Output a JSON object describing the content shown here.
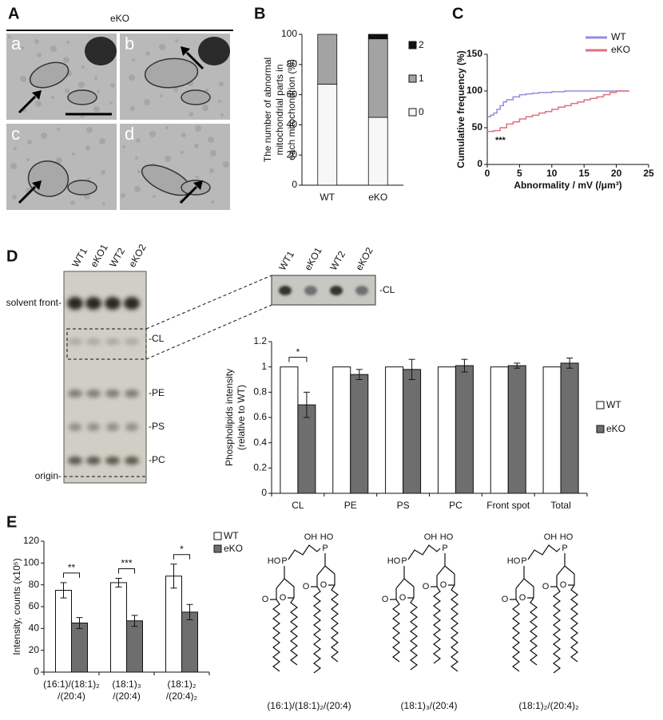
{
  "panels": [
    "A",
    "B",
    "C",
    "D",
    "E"
  ],
  "em": {
    "title": "eKO",
    "subpanels": [
      "a",
      "b",
      "c",
      "d"
    ]
  },
  "tlc": {
    "lanes": [
      "WT1",
      "eKO1",
      "WT2",
      "eKO2"
    ],
    "left_labels": [
      "solvent front-",
      "origin-"
    ],
    "right_labels": [
      "-CL",
      "-PE",
      "-PS",
      "-PC"
    ]
  },
  "structures": {
    "atoms": [
      "OH",
      "HO",
      "P",
      "O"
    ],
    "captions": [
      "(16:1)/(18:1)₂/(20:4)",
      "(18:1)₃/(20:4)",
      "(18:1)₂/(20:4)₂"
    ]
  },
  "chart_data": [
    {
      "type": "stacked_bar",
      "ylabel": [
        "The number of abnormal",
        "mitochondrial parts in",
        "each mitochondrion (%)"
      ],
      "categories": [
        "WT",
        "eKO"
      ],
      "ylim": [
        0,
        100
      ],
      "yticks": [
        0,
        20,
        40,
        60,
        80,
        100
      ],
      "series": [
        {
          "name": "0",
          "color": "#f7f7f7",
          "values": [
            67,
            45
          ]
        },
        {
          "name": "1",
          "color": "#a3a3a3",
          "values": [
            33,
            52
          ]
        },
        {
          "name": "2",
          "color": "#111111",
          "values": [
            0,
            3
          ]
        }
      ]
    },
    {
      "type": "line",
      "xlabel": "Abnormality / mV (/μm³)",
      "ylabel": "Cumulative frequency (%)",
      "xlim": [
        0,
        25
      ],
      "xticks": [
        0,
        5,
        10,
        15,
        20,
        25
      ],
      "ylim": [
        0,
        150
      ],
      "yticks": [
        0,
        50,
        100,
        150
      ],
      "annotations": [
        "***"
      ],
      "series": [
        {
          "name": "WT",
          "color": "#8f8fe0",
          "x": [
            0,
            0.5,
            1,
            1.5,
            2,
            2.5,
            3,
            4,
            5,
            6,
            7,
            8,
            10,
            12,
            15,
            20,
            22
          ],
          "values": [
            65,
            67,
            70,
            75,
            80,
            85,
            88,
            92,
            95,
            96,
            97,
            98,
            99,
            100,
            100,
            100,
            100
          ]
        },
        {
          "name": "eKO",
          "color": "#e07080",
          "x": [
            0,
            1,
            2,
            3,
            4,
            5,
            6,
            7,
            8,
            9,
            10,
            11,
            12,
            13,
            14,
            15,
            16,
            17,
            18,
            19,
            20,
            22
          ],
          "values": [
            45,
            46,
            50,
            55,
            58,
            62,
            65,
            67,
            70,
            72,
            75,
            78,
            80,
            83,
            85,
            88,
            90,
            92,
            95,
            98,
            100,
            100
          ]
        }
      ]
    },
    {
      "type": "bar",
      "ylabel": [
        "Phospholipids intensity",
        "(relative to WT)"
      ],
      "categories": [
        "CL",
        "PE",
        "PS",
        "PC",
        "Front spot",
        "Total"
      ],
      "ylim": [
        0,
        1.2
      ],
      "yticks": [
        0,
        0.2,
        0.4,
        0.6,
        0.8,
        1,
        1.2
      ],
      "annotations": [
        "*"
      ],
      "series": [
        {
          "name": "WT",
          "color": "#ffffff",
          "values": [
            1,
            1,
            1,
            1,
            1,
            1
          ]
        },
        {
          "name": "eKO",
          "color": "#6e6e6e",
          "values": [
            0.7,
            0.94,
            0.98,
            1.01,
            1.01,
            1.03
          ],
          "errors": [
            0.1,
            0.04,
            0.08,
            0.05,
            0.02,
            0.04
          ]
        }
      ]
    },
    {
      "type": "bar",
      "ylabel": "Intensity, counts (x10⁵)",
      "categories": [
        [
          "(16:1)/(18:1)₂",
          "/(20:4)"
        ],
        [
          "(18:1)₃",
          "/(20:4)"
        ],
        [
          "(18:1)₂",
          "/(20:4)₂"
        ]
      ],
      "ylim": [
        0,
        120
      ],
      "yticks": [
        0,
        20,
        40,
        60,
        80,
        100,
        120
      ],
      "annotations": [
        "**",
        "***",
        "*"
      ],
      "series": [
        {
          "name": "WT",
          "color": "#ffffff",
          "values": [
            75,
            82,
            88
          ],
          "errors": [
            7,
            4,
            11
          ]
        },
        {
          "name": "eKO",
          "color": "#6e6e6e",
          "values": [
            45,
            47,
            55
          ],
          "errors": [
            5,
            5,
            7
          ]
        }
      ]
    }
  ]
}
